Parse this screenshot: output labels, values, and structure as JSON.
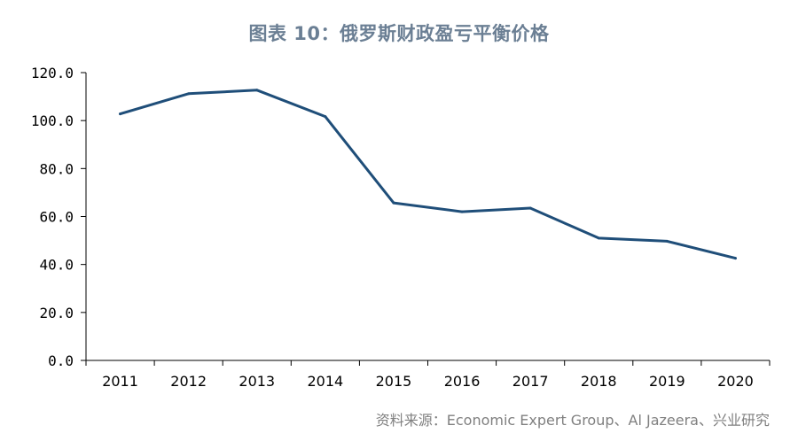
{
  "chart_data": {
    "type": "line",
    "title": "图表 10：俄罗斯财政盈亏平衡价格",
    "xlabel": "",
    "ylabel": "",
    "categories": [
      "2011",
      "2012",
      "2013",
      "2014",
      "2015",
      "2016",
      "2017",
      "2018",
      "2019",
      "2020"
    ],
    "series": [
      {
        "values": [
          102.8,
          111.2,
          112.7,
          101.7,
          65.7,
          62.0,
          63.5,
          51.0,
          49.7,
          42.6
        ]
      }
    ],
    "ylim": [
      0,
      120
    ],
    "yticks": [
      "0.0",
      "20.0",
      "40.0",
      "60.0",
      "80.0",
      "100.0",
      "120.0"
    ],
    "grid": false,
    "legend": "none",
    "line_color": "#1f4e79"
  },
  "source": "资料来源：Economic Expert Group、Al Jazeera、兴业研究"
}
